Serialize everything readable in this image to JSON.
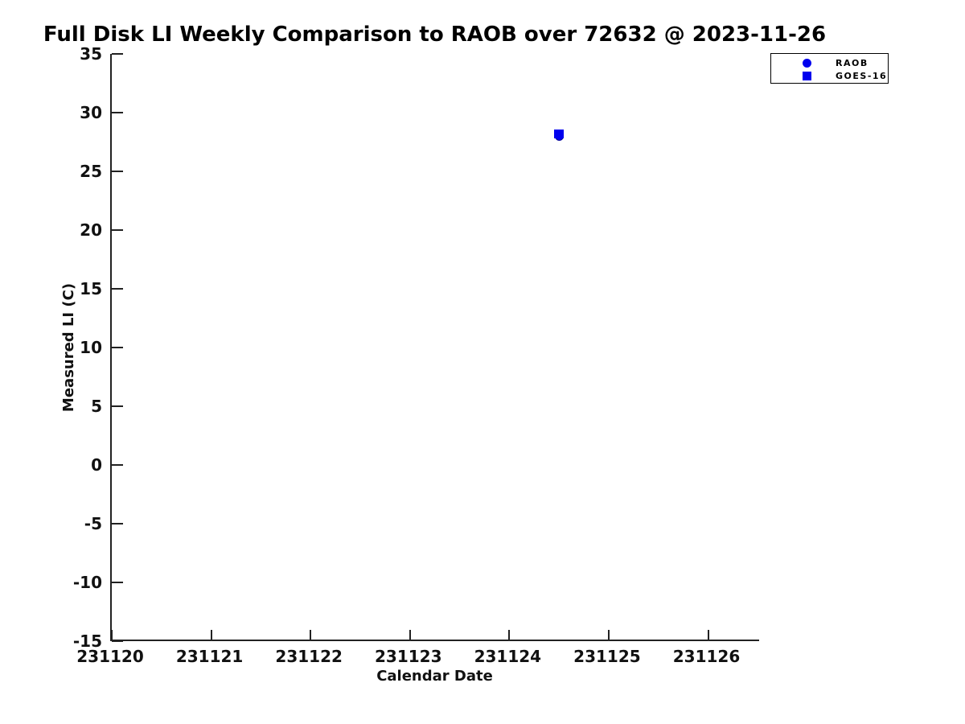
{
  "title": "Full Disk LI Weekly Comparison to RAOB over 72632 @ 2023-11-26",
  "colors": {
    "marker_blue": "#0000EE",
    "axis": "#222222",
    "text": "#111111",
    "background": "#ffffff"
  },
  "chart_data": {
    "type": "scatter",
    "title": "Full Disk LI Weekly Comparison to RAOB over 72632 @ 2023-11-26",
    "xlabel": "Calendar Date",
    "ylabel": "Measured LI (C)",
    "xlim": [
      231120,
      231126.53
    ],
    "ylim": [
      -15,
      35
    ],
    "xticks": [
      231120,
      231121,
      231122,
      231123,
      231124,
      231125,
      231126
    ],
    "yticks": [
      35,
      30,
      25,
      20,
      15,
      10,
      5,
      0,
      -5,
      -10,
      -15
    ],
    "grid": false,
    "legend_position": "top-right-outside",
    "series": [
      {
        "name": "RAOB",
        "marker": "circle",
        "color": "#0000EE",
        "points": [
          {
            "x": 231124.5,
            "y": 28.0
          }
        ]
      },
      {
        "name": "GOES-16",
        "marker": "square",
        "color": "#0000EE",
        "points": [
          {
            "x": 231124.5,
            "y": 28.2
          }
        ]
      }
    ]
  }
}
